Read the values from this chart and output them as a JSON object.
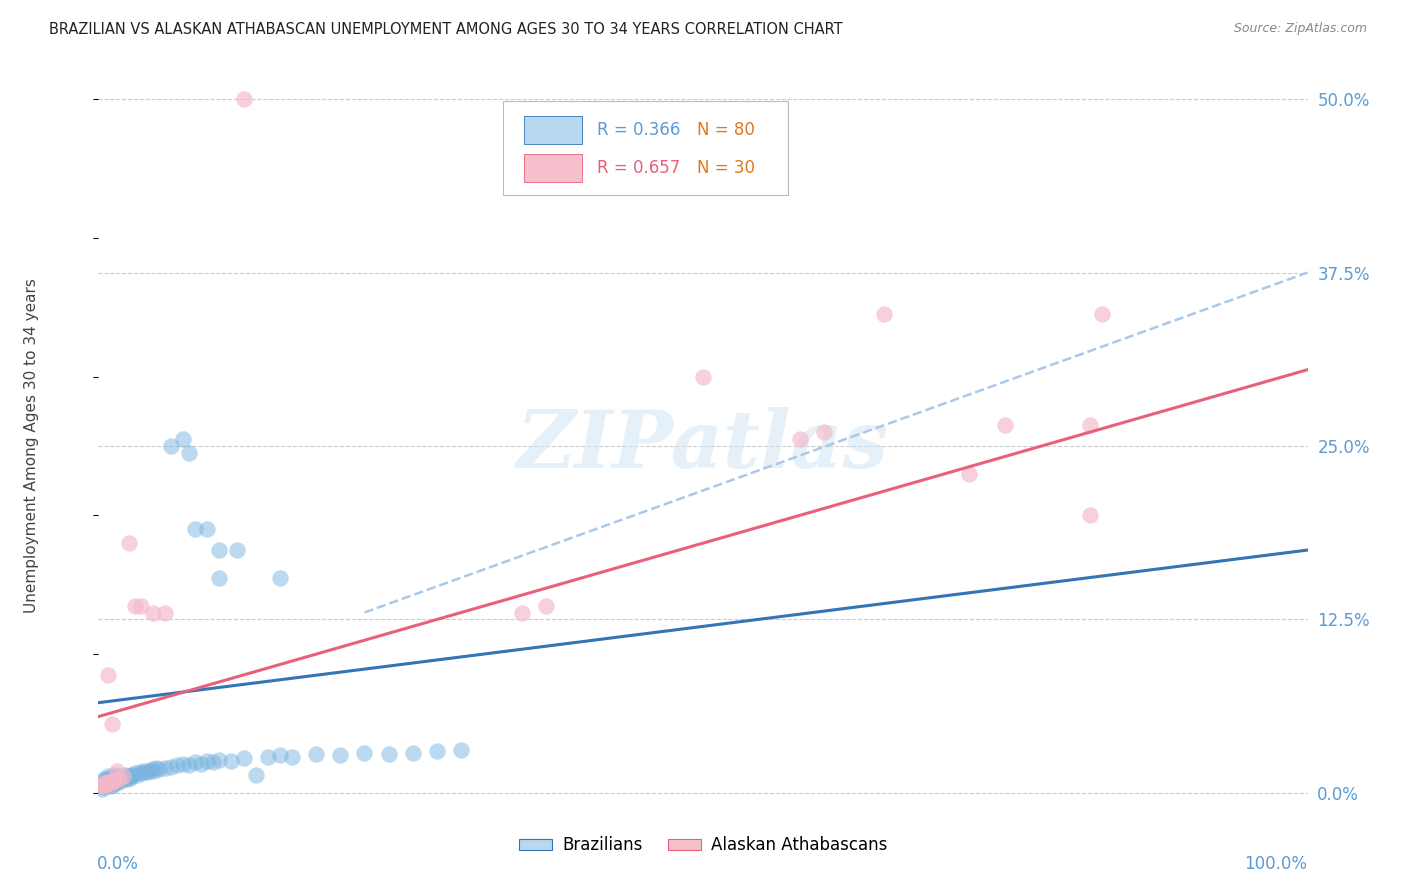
{
  "title": "BRAZILIAN VS ALASKAN ATHABASCAN UNEMPLOYMENT AMONG AGES 30 TO 34 YEARS CORRELATION CHART",
  "source": "Source: ZipAtlas.com",
  "ylabel": "Unemployment Among Ages 30 to 34 years",
  "xlim": [
    0,
    1.0
  ],
  "ylim": [
    -0.02,
    0.52
  ],
  "yticks": [
    0.0,
    0.125,
    0.25,
    0.375,
    0.5
  ],
  "ytick_labels": [
    "0.0%",
    "12.5%",
    "25.0%",
    "37.5%",
    "50.0%"
  ],
  "bg_color": "#ffffff",
  "grid_color": "#cccccc",
  "blue_color": "#7ab4e0",
  "pink_color": "#f5b8c8",
  "blue_line_color": "#3375b5",
  "pink_line_color": "#e8607a",
  "dashed_color": "#aac8e8",
  "axis_label_color": "#5b9bd5",
  "blue_scatter": [
    [
      0.002,
      0.005
    ],
    [
      0.003,
      0.003
    ],
    [
      0.003,
      0.008
    ],
    [
      0.004,
      0.004
    ],
    [
      0.004,
      0.006
    ],
    [
      0.005,
      0.005
    ],
    [
      0.005,
      0.008
    ],
    [
      0.005,
      0.01
    ],
    [
      0.006,
      0.005
    ],
    [
      0.006,
      0.007
    ],
    [
      0.007,
      0.006
    ],
    [
      0.007,
      0.01
    ],
    [
      0.008,
      0.007
    ],
    [
      0.008,
      0.012
    ],
    [
      0.009,
      0.008
    ],
    [
      0.009,
      0.01
    ],
    [
      0.01,
      0.005
    ],
    [
      0.01,
      0.009
    ],
    [
      0.011,
      0.007
    ],
    [
      0.011,
      0.011
    ],
    [
      0.012,
      0.006
    ],
    [
      0.012,
      0.01
    ],
    [
      0.013,
      0.008
    ],
    [
      0.013,
      0.013
    ],
    [
      0.014,
      0.007
    ],
    [
      0.015,
      0.009
    ],
    [
      0.015,
      0.012
    ],
    [
      0.016,
      0.01
    ],
    [
      0.017,
      0.008
    ],
    [
      0.018,
      0.011
    ],
    [
      0.019,
      0.009
    ],
    [
      0.02,
      0.012
    ],
    [
      0.021,
      0.01
    ],
    [
      0.022,
      0.013
    ],
    [
      0.023,
      0.011
    ],
    [
      0.024,
      0.01
    ],
    [
      0.025,
      0.012
    ],
    [
      0.026,
      0.011
    ],
    [
      0.027,
      0.013
    ],
    [
      0.028,
      0.012
    ],
    [
      0.03,
      0.014
    ],
    [
      0.032,
      0.013
    ],
    [
      0.034,
      0.015
    ],
    [
      0.036,
      0.014
    ],
    [
      0.038,
      0.016
    ],
    [
      0.04,
      0.015
    ],
    [
      0.042,
      0.016
    ],
    [
      0.044,
      0.017
    ],
    [
      0.046,
      0.016
    ],
    [
      0.048,
      0.018
    ],
    [
      0.05,
      0.017
    ],
    [
      0.055,
      0.018
    ],
    [
      0.06,
      0.019
    ],
    [
      0.065,
      0.02
    ],
    [
      0.07,
      0.021
    ],
    [
      0.075,
      0.02
    ],
    [
      0.08,
      0.022
    ],
    [
      0.085,
      0.021
    ],
    [
      0.09,
      0.023
    ],
    [
      0.095,
      0.022
    ],
    [
      0.1,
      0.024
    ],
    [
      0.11,
      0.023
    ],
    [
      0.12,
      0.025
    ],
    [
      0.13,
      0.013
    ],
    [
      0.14,
      0.026
    ],
    [
      0.15,
      0.027
    ],
    [
      0.16,
      0.026
    ],
    [
      0.18,
      0.028
    ],
    [
      0.2,
      0.027
    ],
    [
      0.22,
      0.029
    ],
    [
      0.24,
      0.028
    ],
    [
      0.26,
      0.029
    ],
    [
      0.28,
      0.03
    ],
    [
      0.3,
      0.031
    ],
    [
      0.06,
      0.25
    ],
    [
      0.07,
      0.255
    ],
    [
      0.075,
      0.245
    ],
    [
      0.08,
      0.19
    ],
    [
      0.09,
      0.19
    ],
    [
      0.1,
      0.155
    ],
    [
      0.1,
      0.175
    ],
    [
      0.115,
      0.175
    ],
    [
      0.15,
      0.155
    ]
  ],
  "pink_scatter": [
    [
      0.003,
      0.005
    ],
    [
      0.004,
      0.006
    ],
    [
      0.005,
      0.007
    ],
    [
      0.006,
      0.006
    ],
    [
      0.007,
      0.008
    ],
    [
      0.008,
      0.085
    ],
    [
      0.009,
      0.007
    ],
    [
      0.01,
      0.008
    ],
    [
      0.011,
      0.05
    ],
    [
      0.012,
      0.008
    ],
    [
      0.013,
      0.009
    ],
    [
      0.015,
      0.016
    ],
    [
      0.017,
      0.01
    ],
    [
      0.02,
      0.012
    ],
    [
      0.025,
      0.18
    ],
    [
      0.03,
      0.135
    ],
    [
      0.035,
      0.135
    ],
    [
      0.045,
      0.13
    ],
    [
      0.055,
      0.13
    ],
    [
      0.35,
      0.13
    ],
    [
      0.37,
      0.135
    ],
    [
      0.5,
      0.3
    ],
    [
      0.58,
      0.255
    ],
    [
      0.6,
      0.26
    ],
    [
      0.65,
      0.345
    ],
    [
      0.72,
      0.23
    ],
    [
      0.75,
      0.265
    ],
    [
      0.82,
      0.2
    ],
    [
      0.82,
      0.265
    ],
    [
      0.83,
      0.345
    ],
    [
      0.12,
      0.5
    ]
  ],
  "blue_line_pts": [
    [
      0.0,
      0.065
    ],
    [
      1.0,
      0.175
    ]
  ],
  "pink_line_pts": [
    [
      0.0,
      0.055
    ],
    [
      1.0,
      0.305
    ]
  ],
  "dashed_line_pts": [
    [
      0.22,
      0.13
    ],
    [
      1.0,
      0.375
    ]
  ]
}
